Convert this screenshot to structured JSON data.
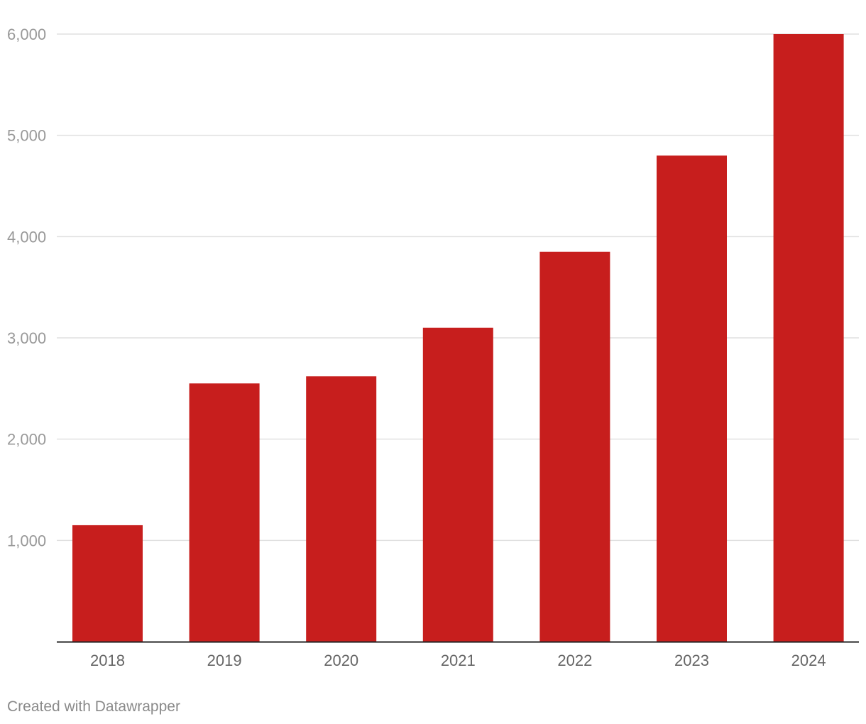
{
  "chart_data": {
    "type": "bar",
    "categories": [
      "2018",
      "2019",
      "2020",
      "2021",
      "2022",
      "2023",
      "2024"
    ],
    "values": [
      1150,
      2550,
      2620,
      3100,
      3850,
      4800,
      6000
    ],
    "ylim": [
      0,
      6000
    ],
    "yticks": [
      1000,
      2000,
      3000,
      4000,
      5000,
      6000
    ],
    "ytick_labels": [
      "1,000",
      "2,000",
      "3,000",
      "4,000",
      "5,000",
      "6,000"
    ],
    "grid": true,
    "bar_color": "#c71e1d",
    "grid_color": "#e0e0e0",
    "axis_color": "#222222",
    "title": "",
    "xlabel": "",
    "ylabel": ""
  },
  "footer": {
    "credit": "Created with Datawrapper"
  }
}
